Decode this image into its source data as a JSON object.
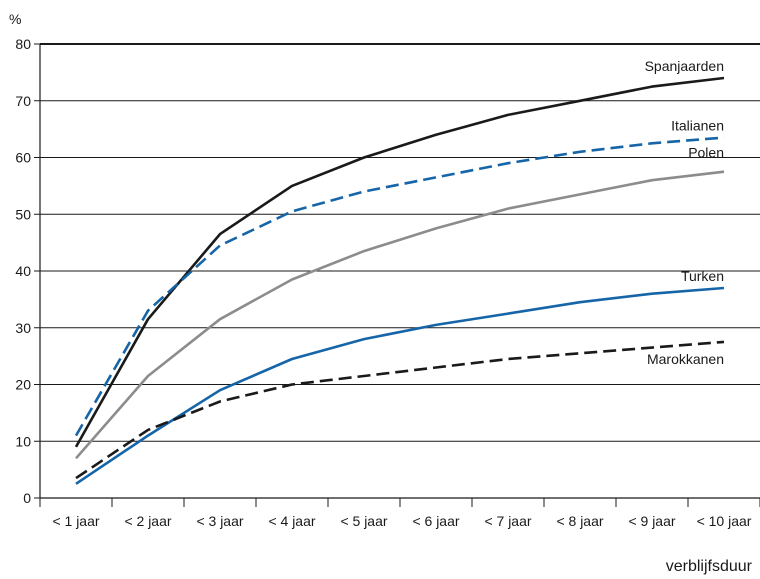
{
  "chart_data": {
    "type": "line",
    "ylabel": "%",
    "xlabel": "verblijfsduur",
    "ylim": [
      0,
      80
    ],
    "yticks": [
      0,
      10,
      20,
      30,
      40,
      50,
      60,
      70,
      80
    ],
    "grid": true,
    "categories": [
      "< 1 jaar",
      "< 2 jaar",
      "< 3 jaar",
      "< 4 jaar",
      "< 5 jaar",
      "< 6 jaar",
      "< 7 jaar",
      "< 8 jaar",
      "< 9 jaar",
      "< 10 jaar"
    ],
    "series": [
      {
        "name": "Spanjaarden",
        "color": "#1a1a1a",
        "dash": "solid",
        "values": [
          9,
          31.5,
          46.5,
          55,
          60,
          64,
          67.5,
          70,
          72.5,
          74
        ]
      },
      {
        "name": "Italianen",
        "color": "#1565a8",
        "dash": "dashed",
        "values": [
          11,
          33,
          44.5,
          50.5,
          54,
          56.5,
          59,
          61,
          62.5,
          63.5
        ]
      },
      {
        "name": "Polen",
        "color": "#8c8c8c",
        "dash": "solid",
        "values": [
          7,
          21.5,
          31.5,
          38.5,
          43.5,
          47.5,
          51,
          53.5,
          56,
          57.5
        ]
      },
      {
        "name": "Turken",
        "color": "#1565a8",
        "dash": "solid",
        "values": [
          2.5,
          11,
          19,
          24.5,
          28,
          30.5,
          32.5,
          34.5,
          36,
          37
        ]
      },
      {
        "name": "Marokkanen",
        "color": "#1a1a1a",
        "dash": "dashed",
        "values": [
          3.5,
          12,
          17,
          20,
          21.5,
          23,
          24.5,
          25.5,
          26.5,
          27.5
        ]
      }
    ]
  }
}
